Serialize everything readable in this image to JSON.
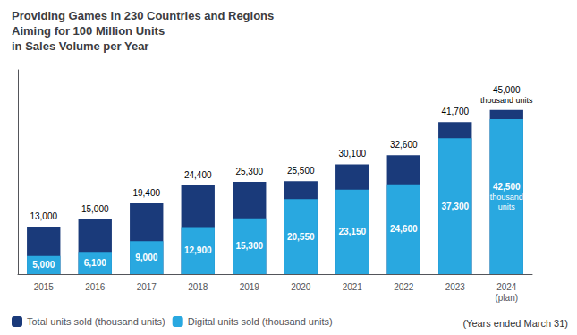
{
  "chart_data": {
    "type": "bar",
    "title": "Providing Games in 230 Countries and Regions\nAiming for 100 Million Units\nin Sales Volume per Year",
    "categories": [
      "2015",
      "2016",
      "2017",
      "2018",
      "2019",
      "2020",
      "2021",
      "2022",
      "2023",
      "2024\n(plan)"
    ],
    "series": [
      {
        "name": "Total units sold (thousand units)",
        "color": "#1a3a7a",
        "values": [
          13000,
          15000,
          19400,
          24400,
          25300,
          25500,
          30100,
          32600,
          41700,
          45000
        ],
        "value_labels": [
          "13,000",
          "15,000",
          "19,400",
          "24,400",
          "25,300",
          "25,500",
          "30,100",
          "32,600",
          "41,700",
          "45,000\nthousand units"
        ]
      },
      {
        "name": "Digital units sold (thousand units)",
        "color": "#29a8e0",
        "values": [
          5000,
          6100,
          9000,
          12900,
          15300,
          20550,
          23150,
          24600,
          37300,
          42500
        ],
        "value_labels": [
          "5,000",
          "6,100",
          "9,000",
          "12,900",
          "15,300",
          "20,550",
          "23,150",
          "24,600",
          "37,300",
          "42,500\nthousand\nunits"
        ]
      }
    ],
    "ylim": [
      0,
      56000
    ],
    "stacked": false,
    "data_labels": true,
    "tick_labels": "x",
    "grid": false,
    "legend": "lower left",
    "annotations": [
      "(Years ended March 31)"
    ]
  }
}
